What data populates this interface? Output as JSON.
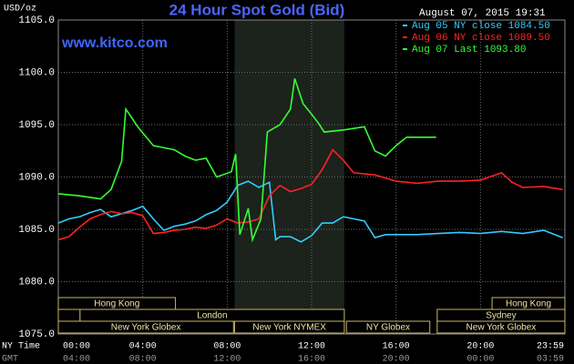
{
  "chart_data": {
    "type": "line",
    "title": "24 Hour Spot Gold (Bid)",
    "subtitle": "www.kitco.com",
    "unit_label": "USD/oz",
    "timestamp": "August 07, 2015 19:31",
    "x_axis_label": "NY Time",
    "x2_axis_label": "GMT",
    "xlim": [
      0,
      24
    ],
    "ylim": [
      1075,
      1105
    ],
    "xticks": [
      {
        "value": 0,
        "label": "00:00"
      },
      {
        "value": 4,
        "label": "04:00"
      },
      {
        "value": 8,
        "label": "08:00"
      },
      {
        "value": 12,
        "label": "12:00"
      },
      {
        "value": 16,
        "label": "16:00"
      },
      {
        "value": 20,
        "label": "20:00"
      },
      {
        "value": 24,
        "label": "23:59"
      }
    ],
    "x2tick_labels": [
      "04:00",
      "08:00",
      "12:00",
      "16:00",
      "20:00",
      "00:00",
      "03:59"
    ],
    "yticks": [
      {
        "value": 1075,
        "label": "1075.0"
      },
      {
        "value": 1080,
        "label": "1080.0"
      },
      {
        "value": 1085,
        "label": "1085.0"
      },
      {
        "value": 1090,
        "label": "1090.0"
      },
      {
        "value": 1095,
        "label": "1095.0"
      },
      {
        "value": 1100,
        "label": "1100.0"
      },
      {
        "value": 1105,
        "label": "1105.0"
      }
    ],
    "grid": true,
    "series": [
      {
        "name": "Aug 05 NY close 1084.50",
        "color": "#33ccff",
        "x": [
          0,
          0.5,
          1,
          1.5,
          2,
          2.5,
          3,
          3.5,
          4,
          4.5,
          5,
          5.5,
          6,
          6.5,
          7,
          7.5,
          8,
          8.5,
          9,
          9.5,
          10,
          10.3,
          10.5,
          11,
          11.5,
          12,
          12.5,
          13,
          13.5,
          14,
          14.5,
          15,
          15.5,
          16,
          17,
          18,
          19,
          20,
          21,
          22,
          23,
          23.9
        ],
        "values": [
          1085.6,
          1086.0,
          1086.2,
          1086.6,
          1086.9,
          1086.2,
          1086.5,
          1086.8,
          1087.2,
          1086.0,
          1084.9,
          1085.3,
          1085.5,
          1085.8,
          1086.4,
          1086.8,
          1087.6,
          1089.2,
          1089.6,
          1089.0,
          1089.5,
          1084.0,
          1084.3,
          1084.3,
          1083.8,
          1084.4,
          1085.6,
          1085.6,
          1086.2,
          1086.0,
          1085.8,
          1084.2,
          1084.5,
          1084.5,
          1084.5,
          1084.6,
          1084.7,
          1084.6,
          1084.8,
          1084.6,
          1084.9,
          1084.2
        ]
      },
      {
        "name": "Aug 06 NY close 1089.50",
        "color": "#ff2222",
        "x": [
          0,
          0.5,
          1,
          1.5,
          2,
          2.5,
          3,
          3.5,
          4,
          4.5,
          5,
          5.5,
          6,
          6.5,
          7,
          7.5,
          8,
          8.5,
          9,
          9.5,
          10,
          10.5,
          11,
          11.5,
          12,
          12.5,
          13,
          13.5,
          14,
          15,
          16,
          17,
          18,
          19,
          20,
          21,
          21.5,
          22,
          23,
          23.9
        ],
        "values": [
          1084.0,
          1084.3,
          1085.2,
          1086.0,
          1086.4,
          1086.7,
          1086.5,
          1086.6,
          1086.3,
          1084.6,
          1084.7,
          1084.9,
          1085.0,
          1085.2,
          1085.1,
          1085.4,
          1086.0,
          1085.6,
          1085.7,
          1086.0,
          1088.2,
          1089.2,
          1088.6,
          1088.9,
          1089.3,
          1090.7,
          1092.6,
          1091.6,
          1090.4,
          1090.2,
          1089.6,
          1089.4,
          1089.6,
          1089.6,
          1089.7,
          1090.4,
          1089.5,
          1089.0,
          1089.1,
          1088.8
        ]
      },
      {
        "name": "Aug 07 Last 1093.80",
        "color": "#33ff33",
        "x": [
          0,
          1,
          2,
          2.5,
          3,
          3.2,
          3.8,
          4.5,
          5.5,
          6,
          6.5,
          7,
          7.5,
          8.2,
          8.4,
          8.6,
          9,
          9.2,
          9.6,
          9.9,
          10.5,
          11,
          11.2,
          11.6,
          12,
          12.3,
          12.6,
          13.5,
          14.5,
          15,
          15.5,
          16,
          16.5,
          17.9
        ],
        "values": [
          1088.4,
          1088.2,
          1087.9,
          1088.8,
          1091.5,
          1096.5,
          1094.7,
          1093.0,
          1092.6,
          1092.0,
          1091.6,
          1091.8,
          1090.0,
          1090.5,
          1092.2,
          1084.5,
          1087.0,
          1084.0,
          1086.0,
          1094.3,
          1095.0,
          1096.5,
          1099.4,
          1097.0,
          1096.0,
          1095.2,
          1094.3,
          1094.5,
          1094.8,
          1092.5,
          1092.0,
          1093.0,
          1093.8,
          1093.8
        ]
      }
    ],
    "sessions": [
      {
        "label": "Hong Kong",
        "start": 0,
        "end": 5.55,
        "row": 0
      },
      {
        "label": "Hong Kong",
        "start": 20.55,
        "end": 24,
        "row": 0
      },
      {
        "label": null,
        "start": 0,
        "end": 1.03,
        "row": 1
      },
      {
        "label": "London",
        "start": 1.03,
        "end": 13.55,
        "row": 1
      },
      {
        "label": "Sydney",
        "start": 17.95,
        "end": 24,
        "row": 1
      },
      {
        "label": "New York Globex",
        "start": 0,
        "end": 8.3,
        "row": 2
      },
      {
        "label": "New York NYMEX",
        "start": 8.35,
        "end": 13.55,
        "row": 2,
        "shaded": true
      },
      {
        "label": "NY Globex",
        "start": 13.65,
        "end": 17.6,
        "row": 2
      },
      {
        "label": "New York Globex",
        "start": 17.95,
        "end": 24,
        "row": 2
      }
    ]
  }
}
